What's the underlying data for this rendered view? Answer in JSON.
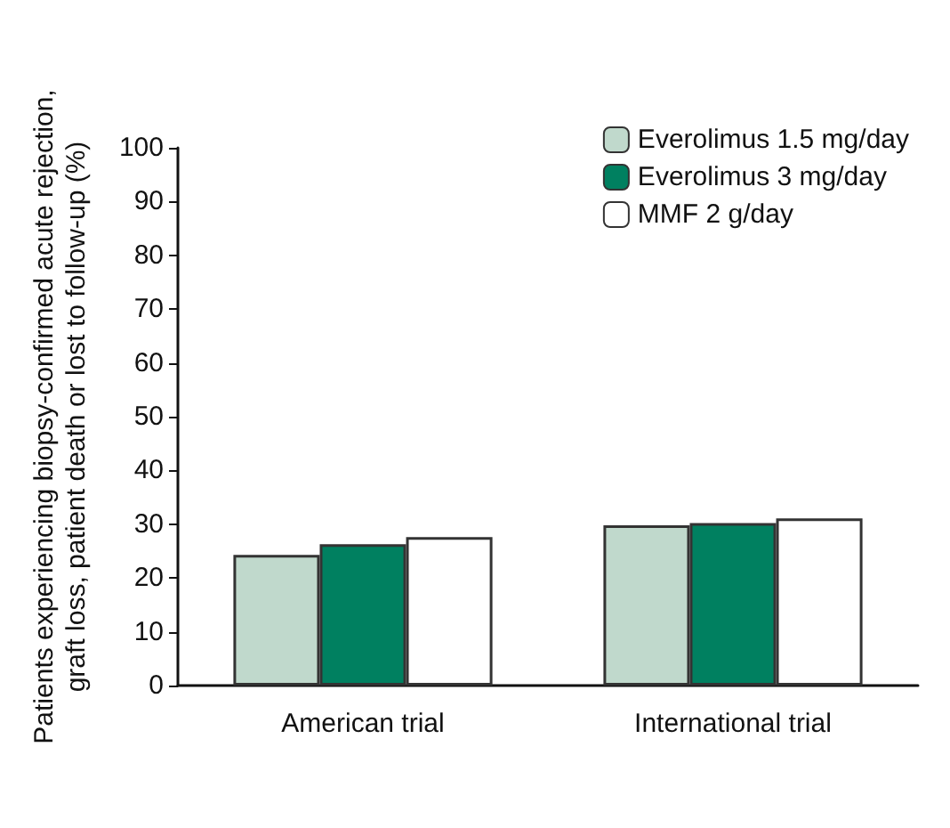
{
  "chart_data": {
    "type": "bar",
    "ylabel": "Patients experiencing biopsy-confirmed acute rejection,\ngraft loss, patient death or lost to follow-up (%)",
    "categories": [
      "American trial",
      "International trial"
    ],
    "series": [
      {
        "name": "Everolimus 1.5 mg/day",
        "color": "#c0d9cc",
        "values": [
          24.3,
          29.8
        ]
      },
      {
        "name": "Everolimus 3 mg/day",
        "color": "#008060",
        "values": [
          26.3,
          30.2
        ]
      },
      {
        "name": "MMF 2 g/day",
        "color": "#ffffff",
        "values": [
          27.6,
          31.1
        ]
      }
    ],
    "ylim": [
      0,
      100
    ],
    "yticks": [
      0,
      10,
      20,
      30,
      40,
      50,
      60,
      70,
      80,
      90,
      100
    ],
    "grid": false,
    "legend": "top right"
  }
}
